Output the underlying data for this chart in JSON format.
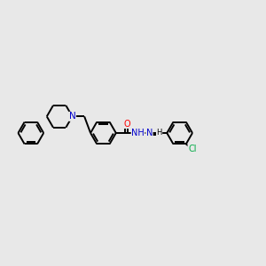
{
  "bg_color": "#e8e8e8",
  "bond_color": "#000000",
  "bond_width": 1.4,
  "atom_colors": {
    "N": "#0000cc",
    "O": "#ff0000",
    "Cl": "#00aa44",
    "C": "#000000",
    "H": "#000000"
  },
  "font_size": 6.5,
  "fig_width": 3.0,
  "fig_height": 3.0,
  "dpi": 100
}
